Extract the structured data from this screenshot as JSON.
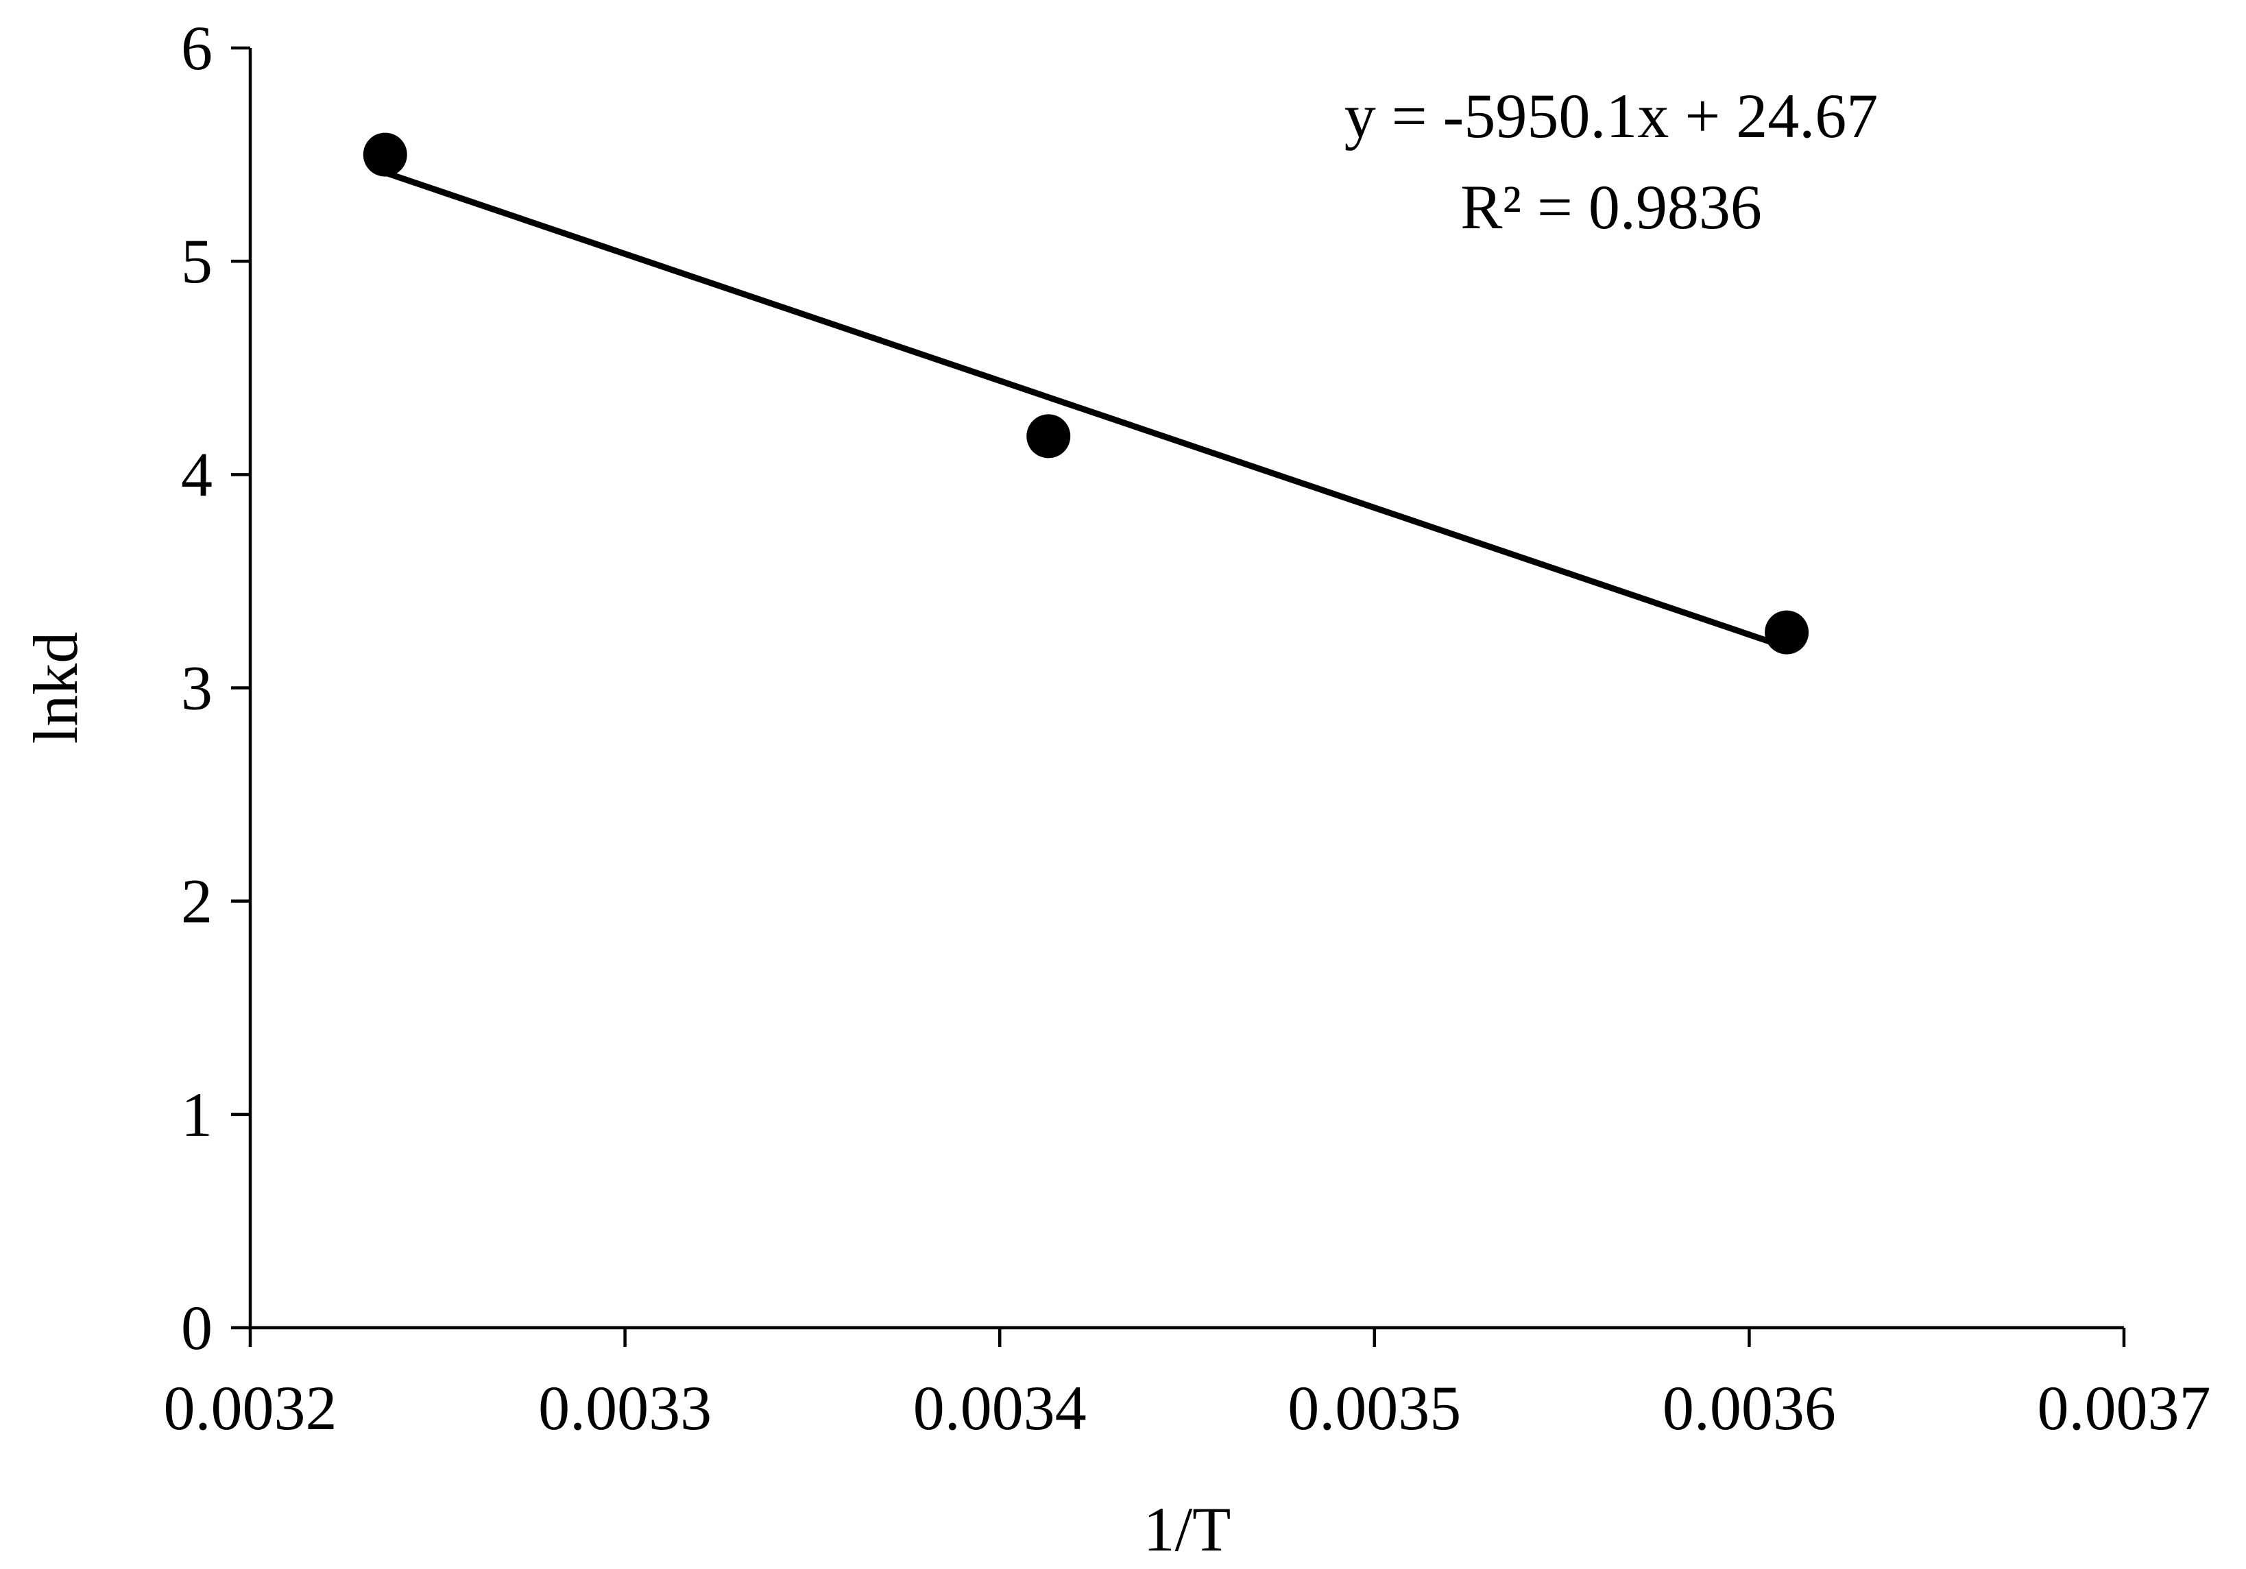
{
  "chart_data": {
    "type": "scatter",
    "xlabel": "1/T",
    "ylabel": "lnkd",
    "xlim": [
      0.0032,
      0.0037
    ],
    "ylim": [
      0,
      6
    ],
    "x_ticks": [
      "0.0032",
      "0.0033",
      "0.0034",
      "0.0035",
      "0.0036",
      "0.0037"
    ],
    "y_ticks": [
      "0",
      "1",
      "2",
      "3",
      "4",
      "5",
      "6"
    ],
    "grid": false,
    "legend": "none",
    "series": [
      {
        "x": [
          0.003236,
          0.003413,
          0.00361
        ],
        "y": [
          5.5,
          4.18,
          3.26
        ],
        "marker": "circle",
        "color": "#000000"
      }
    ],
    "trendline": {
      "type": "linear",
      "slope": -5950.1,
      "intercept": 24.67,
      "x_range": [
        0.003236,
        0.00361
      ],
      "color": "#000000"
    },
    "annotations": [
      "y = -5950.1x + 24.67",
      "R² = 0.9836"
    ]
  }
}
